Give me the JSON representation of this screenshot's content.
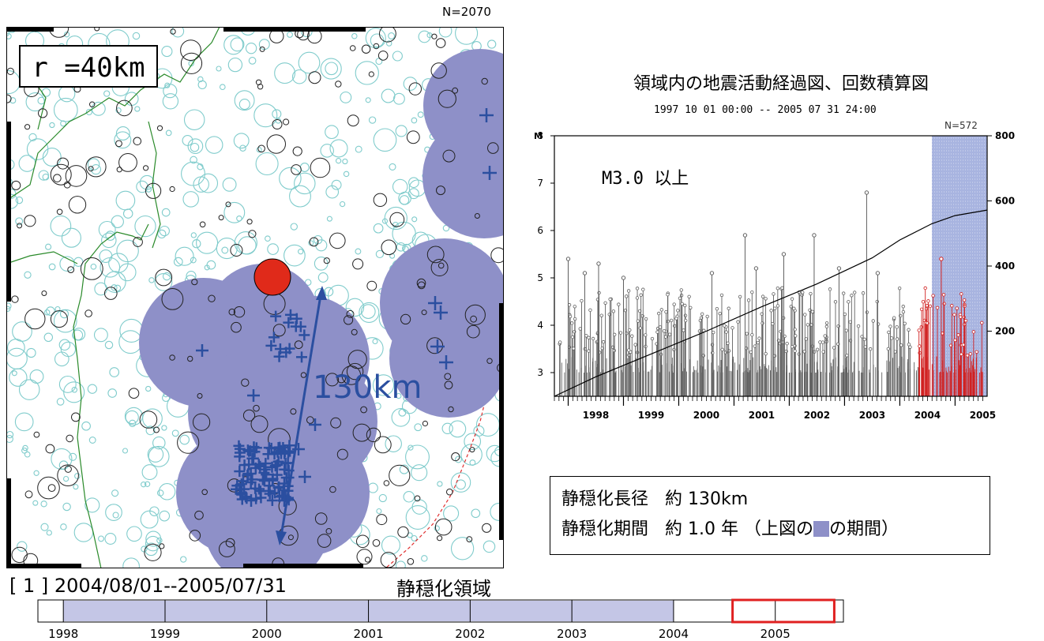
{
  "map": {
    "n_label": "N=2070",
    "radius_label": "r =40km",
    "distance_label": "130km",
    "period_label": "[ 1 ]  2004/08/01--2005/07/31",
    "region_label": "静穏化領域",
    "colors": {
      "region": "#8e90c8",
      "cross": "#2b4fa0",
      "circle_bg": "#80cccc",
      "circle_q": "#222222",
      "epicenter": "#e02a1a",
      "coast": "#2a8a2a",
      "trench": "#e03030"
    }
  },
  "timeline": {
    "years": [
      "1998",
      "1999",
      "2000",
      "2001",
      "2002",
      "2003",
      "2004",
      "2005"
    ],
    "shaded_range": [
      1998.0,
      2004.0
    ],
    "selected_range": [
      2004.58,
      2005.58
    ],
    "colors": {
      "shaded": "#c4c6e6",
      "selected": "#e02020"
    }
  },
  "graph": {
    "title": "領域内の地震活動経過図、回数積算図",
    "range_label": "1997 10 01 00:00  --  2005 07 31 24:00",
    "n_label": "N=572",
    "left_axis_label": "M",
    "mag_threshold_label": "M3.0 以上",
    "colors": {
      "stem": "#606060",
      "stem_recent": "#d02020",
      "highlight": "#a8b4e0",
      "cumulative": "#000000"
    }
  },
  "info": {
    "line1_label": "静穏化長径",
    "line1_value": "約 130km",
    "line2_label": "静穏化期間",
    "line2_value": "約 1.0 年",
    "line2_paren_open": "（上図の",
    "line2_paren_close": "の期間）"
  },
  "chart_data": {
    "type": "line",
    "title": "領域内の地震活動経過図、回数積算図",
    "subtitle": "1997 10 01 00:00  --  2005 07 31 24:00",
    "x_ticks": [
      "1998",
      "1999",
      "2000",
      "2001",
      "2002",
      "2003",
      "2004",
      "2005"
    ],
    "xlim": [
      1997.75,
      2005.58
    ],
    "ylabel": "M",
    "ylim": [
      2.5,
      8.0
    ],
    "y_ticks": [
      "3",
      "4",
      "5",
      "6",
      "7",
      "8"
    ],
    "y2lim": [
      0,
      800
    ],
    "y2_ticks": [
      "200",
      "400",
      "600",
      "800"
    ],
    "highlight_range": [
      2004.58,
      2005.58
    ],
    "series": [
      {
        "name": "",
        "x": [
          1997.75,
          1998.5,
          1999.5,
          2000.5,
          2001.5,
          2002.5,
          2003.5,
          2004.0,
          2004.58,
          2005.0,
          2005.58
        ],
        "values": [
          0,
          60,
          130,
          200,
          275,
          345,
          425,
          480,
          530,
          555,
          572
        ]
      }
    ],
    "notable_events": [
      {
        "x": 1998.0,
        "y": 5.4
      },
      {
        "x": 1998.3,
        "y": 5.1
      },
      {
        "x": 1998.55,
        "y": 5.3
      },
      {
        "x": 1999.0,
        "y": 5.0
      },
      {
        "x": 2000.6,
        "y": 5.1
      },
      {
        "x": 2001.2,
        "y": 5.9
      },
      {
        "x": 2001.4,
        "y": 5.2
      },
      {
        "x": 2001.9,
        "y": 5.5
      },
      {
        "x": 2002.45,
        "y": 5.9
      },
      {
        "x": 2002.9,
        "y": 5.2
      },
      {
        "x": 2003.4,
        "y": 6.8
      },
      {
        "x": 2003.6,
        "y": 5.1
      },
      {
        "x": 2004.75,
        "y": 5.4
      }
    ]
  }
}
